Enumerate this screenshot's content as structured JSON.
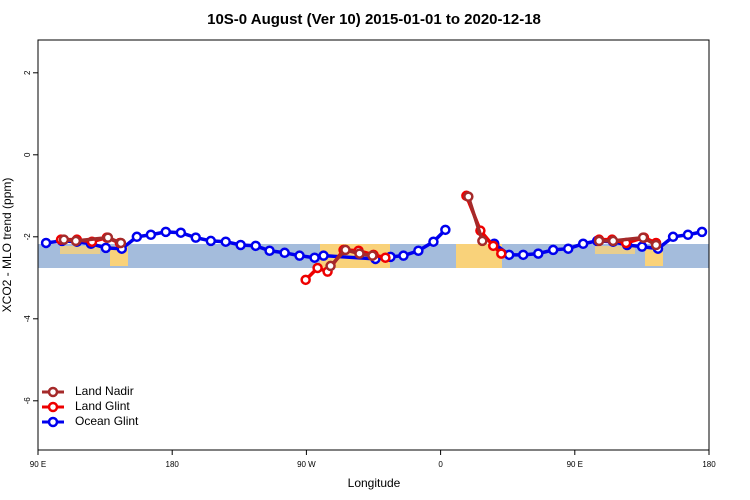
{
  "chart_data": {
    "type": "line",
    "title": "10S-0 August (Ver 10)   2015-01-01 to 2020-12-18",
    "x_label": "Longitude",
    "y_label": "XCO2 - MLO trend (ppm)",
    "xlim": [
      90,
      540
    ],
    "xticks": [
      {
        "value": 90,
        "label": "90 E"
      },
      180,
      {
        "value": 270,
        "label": "90 W"
      },
      {
        "value": 360,
        "label": "0"
      },
      {
        "value": 450,
        "label": "90 E"
      },
      {
        "value": 540,
        "label": "180"
      }
    ],
    "ylim": [
      -7.2,
      2.8
    ],
    "yticks": [
      -6,
      -4,
      -2,
      0,
      2
    ],
    "legend": "bottom-left",
    "series": [
      {
        "name": "Land Nadir",
        "color": "#a52a2a",
        "x": [
          107.4,
          115.4,
          136.9,
          145.6,
          null,
          286.2,
          296.2,
          305.6,
          314.3,
          null,
          378.6,
          388.0,
          null,
          466.3,
          475.7,
          495.8,
          504.5
        ],
        "values": [
          -2.07,
          -2.1,
          -2.02,
          -2.15,
          null,
          -2.71,
          -2.32,
          -2.41,
          -2.46,
          null,
          -1.02,
          -2.1,
          null,
          -2.1,
          -2.1,
          -2.02,
          -2.2
        ]
      },
      {
        "name": "Land Glint",
        "color": "#ee0000",
        "x": [
          105.4,
          116.1,
          126.2,
          136.2,
          144.9,
          null,
          269.5,
          277.5,
          284.2,
          294.9,
          305.0,
          315.0,
          323.0,
          null,
          377.3,
          386.7,
          395.3,
          400.7,
          null,
          466.3,
          475.0,
          484.4,
          496.4,
          504.5
        ],
        "values": [
          -2.07,
          -2.07,
          -2.12,
          -2.02,
          -2.15,
          null,
          -3.05,
          -2.76,
          -2.85,
          -2.32,
          -2.34,
          -2.44,
          -2.51,
          null,
          -1.0,
          -1.85,
          -2.22,
          -2.41,
          null,
          -2.07,
          -2.07,
          -2.15,
          -2.02,
          -2.15
        ]
      },
      {
        "name": "Ocean Glint",
        "color": "#0000ee",
        "x": [
          95.4,
          106.1,
          116.1,
          125.5,
          135.5,
          146.2,
          156.3,
          165.7,
          175.7,
          185.8,
          195.8,
          205.9,
          215.9,
          225.9,
          236.0,
          245.3,
          255.4,
          265.4,
          275.5,
          281.5,
          316.3,
          326.4,
          335.1,
          345.1,
          355.2,
          363.2,
          null,
          396.0,
          406.0,
          415.4,
          425.5,
          435.5,
          445.6,
          455.6,
          465.0,
          475.7,
          485.1,
          495.1,
          505.8,
          515.9,
          525.9,
          535.3
        ],
        "values": [
          -2.15,
          -2.1,
          -2.12,
          -2.17,
          -2.27,
          -2.29,
          -2.0,
          -1.95,
          -1.88,
          -1.9,
          -2.02,
          -2.1,
          -2.12,
          -2.2,
          -2.22,
          -2.34,
          -2.39,
          -2.46,
          -2.51,
          -2.46,
          -2.54,
          -2.49,
          -2.46,
          -2.34,
          -2.12,
          -1.83,
          null,
          -2.17,
          -2.44,
          -2.44,
          -2.41,
          -2.32,
          -2.29,
          -2.17,
          -2.1,
          -2.12,
          -2.2,
          -2.24,
          -2.29,
          -2.0,
          -1.95,
          -1.88
        ]
      }
    ]
  }
}
